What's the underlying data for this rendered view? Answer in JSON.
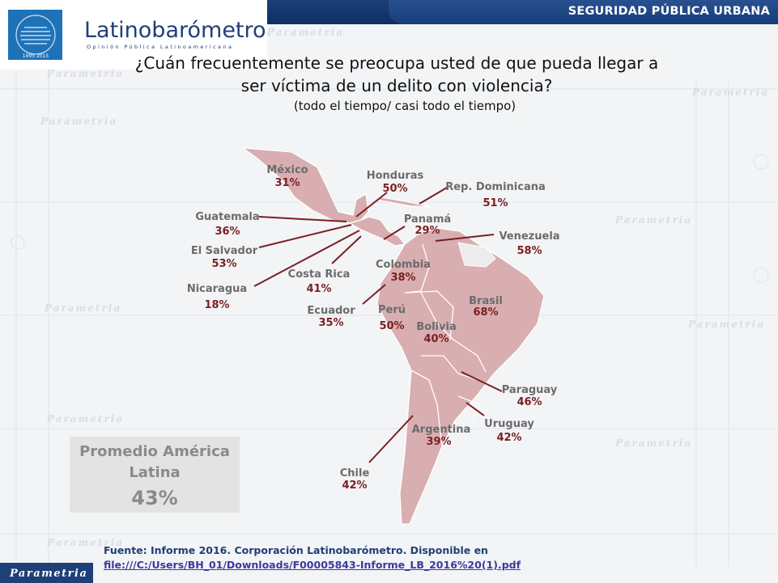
{
  "header": {
    "section_tag": "SEGURIDAD PÚBLICA URBANA",
    "logo_name": "Latinobarómetro",
    "logo_tagline": "Opinión Pública Latinoamericana",
    "badge_years": "1995 2015"
  },
  "title": "¿Cuán frecuentemente se preocupa usted de que pueda llegar a ser víctima de un delito con violencia?",
  "subtitle": "(todo el tiempo/ casi todo el tiempo)",
  "average": {
    "label": "Promedio América Latina",
    "value": "43%"
  },
  "source": {
    "text": "Fuente: Informe 2016. Corporación Latinobarómetro. Disponible en",
    "link": "file:///C:/Users/BH_01/Downloads/F00005843-Informe_LB_2016%20(1).pdf"
  },
  "footer": {
    "brand": "Parametria"
  },
  "watermark_word": "Parametria",
  "colors": {
    "header": "#1b3f78",
    "map_fill": "#d9aeb0",
    "percent_text": "#7a1f22",
    "brand_blue": "#1f3f77"
  },
  "countries": [
    {
      "name": "México",
      "pct": "31%"
    },
    {
      "name": "Honduras",
      "pct": "50%"
    },
    {
      "name": "Rep. Dominicana",
      "pct": "51%"
    },
    {
      "name": "Guatemala",
      "pct": "36%"
    },
    {
      "name": "Panamá",
      "pct": "29%"
    },
    {
      "name": "Venezuela",
      "pct": "58%"
    },
    {
      "name": "El Salvador",
      "pct": "53%"
    },
    {
      "name": "Costa Rica",
      "pct": "41%"
    },
    {
      "name": "Colombia",
      "pct": "38%"
    },
    {
      "name": "Nicaragua",
      "pct": "18%"
    },
    {
      "name": "Ecuador",
      "pct": "35%"
    },
    {
      "name": "Perú",
      "pct": "50%"
    },
    {
      "name": "Brasil",
      "pct": "68%"
    },
    {
      "name": "Bolivia",
      "pct": "40%"
    },
    {
      "name": "Paraguay",
      "pct": "46%"
    },
    {
      "name": "Uruguay",
      "pct": "42%"
    },
    {
      "name": "Argentina",
      "pct": "39%"
    },
    {
      "name": "Chile",
      "pct": "42%"
    }
  ]
}
